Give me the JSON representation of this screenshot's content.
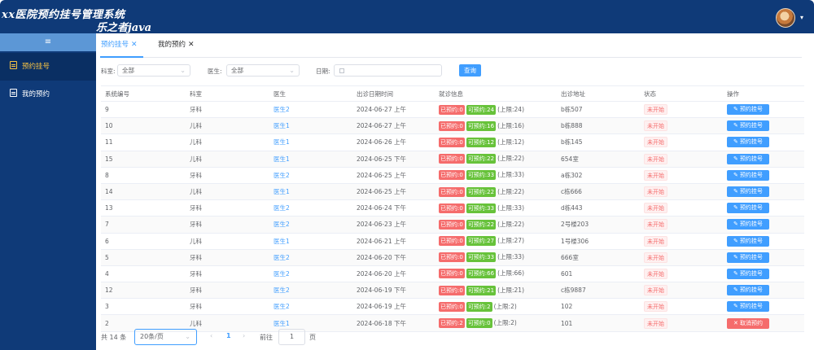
{
  "header": {
    "title_line1": "xx医院预约挂号管理系统",
    "title_line2": "乐之者java"
  },
  "sidebar": {
    "items": [
      {
        "label": "预约挂号",
        "active": true
      },
      {
        "label": "我的预约",
        "active": false
      }
    ]
  },
  "tabs": [
    {
      "label": "预约挂号",
      "close": "✕"
    },
    {
      "label": "我的预约",
      "close": "✕"
    }
  ],
  "filters": {
    "department_label": "科室:",
    "department_value": "全部",
    "doctor_label": "医生:",
    "doctor_value": "全部",
    "date_label": "日期:",
    "date_value": "",
    "query_button": "查询"
  },
  "table": {
    "headers": [
      "系统编号",
      "科室",
      "医生",
      "出诊日期时间",
      "就诊信息",
      "出诊地址",
      "状态",
      "操作"
    ],
    "rows": [
      {
        "id": "9",
        "dept": "牙科",
        "doctor": "医生2",
        "datetime": "2024-06-27 上午",
        "booked": "已预约:0",
        "avail": "可预约:24",
        "limit": "(上限:24)",
        "address": "b栋507",
        "status": "未开始",
        "action": "预约挂号",
        "action_type": "book"
      },
      {
        "id": "10",
        "dept": "儿科",
        "doctor": "医生1",
        "datetime": "2024-06-27 上午",
        "booked": "已预约:0",
        "avail": "可预约:16",
        "limit": "(上限:16)",
        "address": "b栋888",
        "status": "未开始",
        "action": "预约挂号",
        "action_type": "book"
      },
      {
        "id": "11",
        "dept": "儿科",
        "doctor": "医生1",
        "datetime": "2024-06-26 上午",
        "booked": "已预约:0",
        "avail": "可预约:12",
        "limit": "(上限:12)",
        "address": "b栋145",
        "status": "未开始",
        "action": "预约挂号",
        "action_type": "book"
      },
      {
        "id": "15",
        "dept": "儿科",
        "doctor": "医生1",
        "datetime": "2024-06-25 下午",
        "booked": "已预约:0",
        "avail": "可预约:22",
        "limit": "(上限:22)",
        "address": "654室",
        "status": "未开始",
        "action": "预约挂号",
        "action_type": "book"
      },
      {
        "id": "8",
        "dept": "牙科",
        "doctor": "医生2",
        "datetime": "2024-06-25 上午",
        "booked": "已预约:0",
        "avail": "可预约:33",
        "limit": "(上限:33)",
        "address": "a栋302",
        "status": "未开始",
        "action": "预约挂号",
        "action_type": "book"
      },
      {
        "id": "14",
        "dept": "儿科",
        "doctor": "医生1",
        "datetime": "2024-06-25 上午",
        "booked": "已预约:0",
        "avail": "可预约:22",
        "limit": "(上限:22)",
        "address": "c栋666",
        "status": "未开始",
        "action": "预约挂号",
        "action_type": "book"
      },
      {
        "id": "13",
        "dept": "牙科",
        "doctor": "医生2",
        "datetime": "2024-06-24 下午",
        "booked": "已预约:0",
        "avail": "可预约:33",
        "limit": "(上限:33)",
        "address": "d栋443",
        "status": "未开始",
        "action": "预约挂号",
        "action_type": "book"
      },
      {
        "id": "7",
        "dept": "牙科",
        "doctor": "医生2",
        "datetime": "2024-06-23 上午",
        "booked": "已预约:0",
        "avail": "可预约:22",
        "limit": "(上限:22)",
        "address": "2号楼203",
        "status": "未开始",
        "action": "预约挂号",
        "action_type": "book"
      },
      {
        "id": "6",
        "dept": "儿科",
        "doctor": "医生1",
        "datetime": "2024-06-21 上午",
        "booked": "已预约:0",
        "avail": "可预约:27",
        "limit": "(上限:27)",
        "address": "1号楼306",
        "status": "未开始",
        "action": "预约挂号",
        "action_type": "book"
      },
      {
        "id": "5",
        "dept": "牙科",
        "doctor": "医生2",
        "datetime": "2024-06-20 下午",
        "booked": "已预约:0",
        "avail": "可预约:33",
        "limit": "(上限:33)",
        "address": "666室",
        "status": "未开始",
        "action": "预约挂号",
        "action_type": "book"
      },
      {
        "id": "4",
        "dept": "牙科",
        "doctor": "医生2",
        "datetime": "2024-06-20 上午",
        "booked": "已预约:0",
        "avail": "可预约:66",
        "limit": "(上限:66)",
        "address": "601",
        "status": "未开始",
        "action": "预约挂号",
        "action_type": "book"
      },
      {
        "id": "12",
        "dept": "牙科",
        "doctor": "医生2",
        "datetime": "2024-06-19 下午",
        "booked": "已预约:0",
        "avail": "可预约:21",
        "limit": "(上限:21)",
        "address": "c栋9887",
        "status": "未开始",
        "action": "预约挂号",
        "action_type": "book"
      },
      {
        "id": "3",
        "dept": "牙科",
        "doctor": "医生2",
        "datetime": "2024-06-19 上午",
        "booked": "已预约:0",
        "avail": "可预约:2",
        "limit": "(上限:2)",
        "address": "102",
        "status": "未开始",
        "action": "预约挂号",
        "action_type": "book"
      },
      {
        "id": "2",
        "dept": "儿科",
        "doctor": "医生1",
        "datetime": "2024-06-18 下午",
        "booked": "已预约:2",
        "avail": "可预约:0",
        "limit": "(上限:2)",
        "address": "101",
        "status": "未开始",
        "action": "取消预约",
        "action_type": "cancel"
      }
    ]
  },
  "pagination": {
    "total": "共 14 条",
    "page_size": "20条/页",
    "prev": "‹",
    "current": "1",
    "next": "›",
    "goto_label": "前往",
    "goto_value": "1",
    "goto_suffix": "页"
  },
  "colors": {
    "header_bg": "#0f3a78",
    "accent": "#409eff",
    "danger": "#f56c6c",
    "success": "#67c23a",
    "active_menu_text": "#f7c344"
  },
  "icons": {
    "hamburger": "menu-icon",
    "sidebar_booking": "clipboard-icon",
    "sidebar_my": "document-icon",
    "book_action": "edit-icon",
    "cancel_action": "close-icon"
  }
}
